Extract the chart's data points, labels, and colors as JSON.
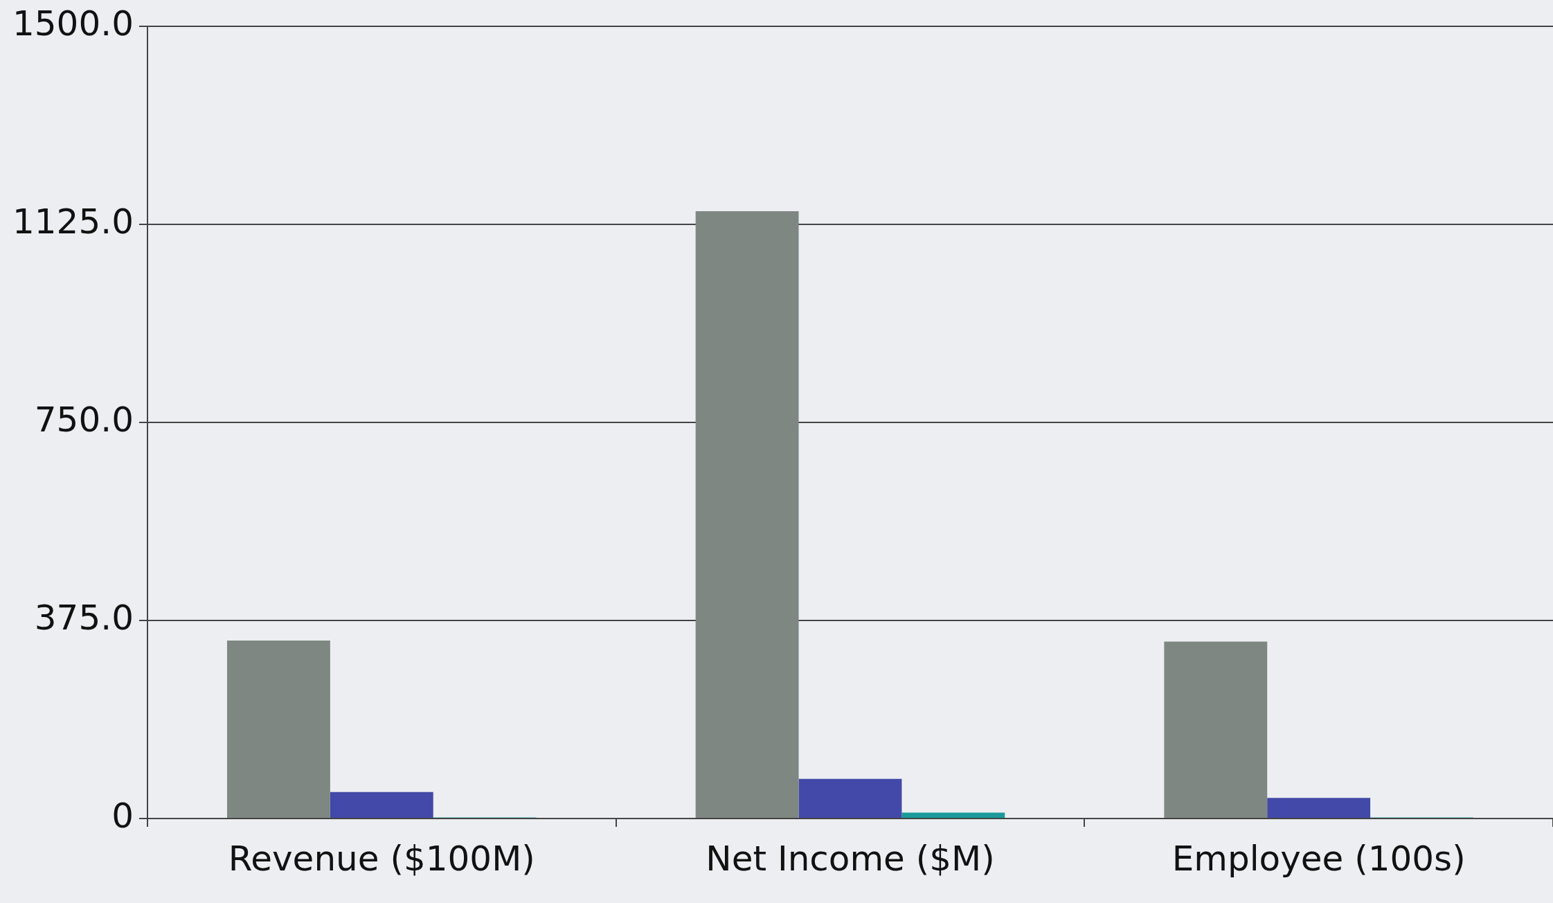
{
  "chart_data": {
    "type": "bar",
    "categories": [
      "Revenue ($100M)",
      "Net Income ($M)",
      "Employee (100s)"
    ],
    "series": [
      {
        "color": "#7f8782",
        "values": [
          337,
          1150,
          335
        ]
      },
      {
        "color": "#4349a8",
        "values": [
          50,
          75,
          39
        ]
      },
      {
        "color": "#1a9a9a",
        "values": [
          2,
          11,
          2
        ]
      }
    ],
    "ylim": [
      0,
      1500
    ],
    "yticks": [
      {
        "value": 0,
        "label": "0"
      },
      {
        "value": 375,
        "label": "375.0"
      },
      {
        "value": 750,
        "label": "750.0"
      },
      {
        "value": 1125,
        "label": "1125.0"
      },
      {
        "value": 1500,
        "label": "1500.0"
      }
    ],
    "grid": "y",
    "legend": false
  }
}
